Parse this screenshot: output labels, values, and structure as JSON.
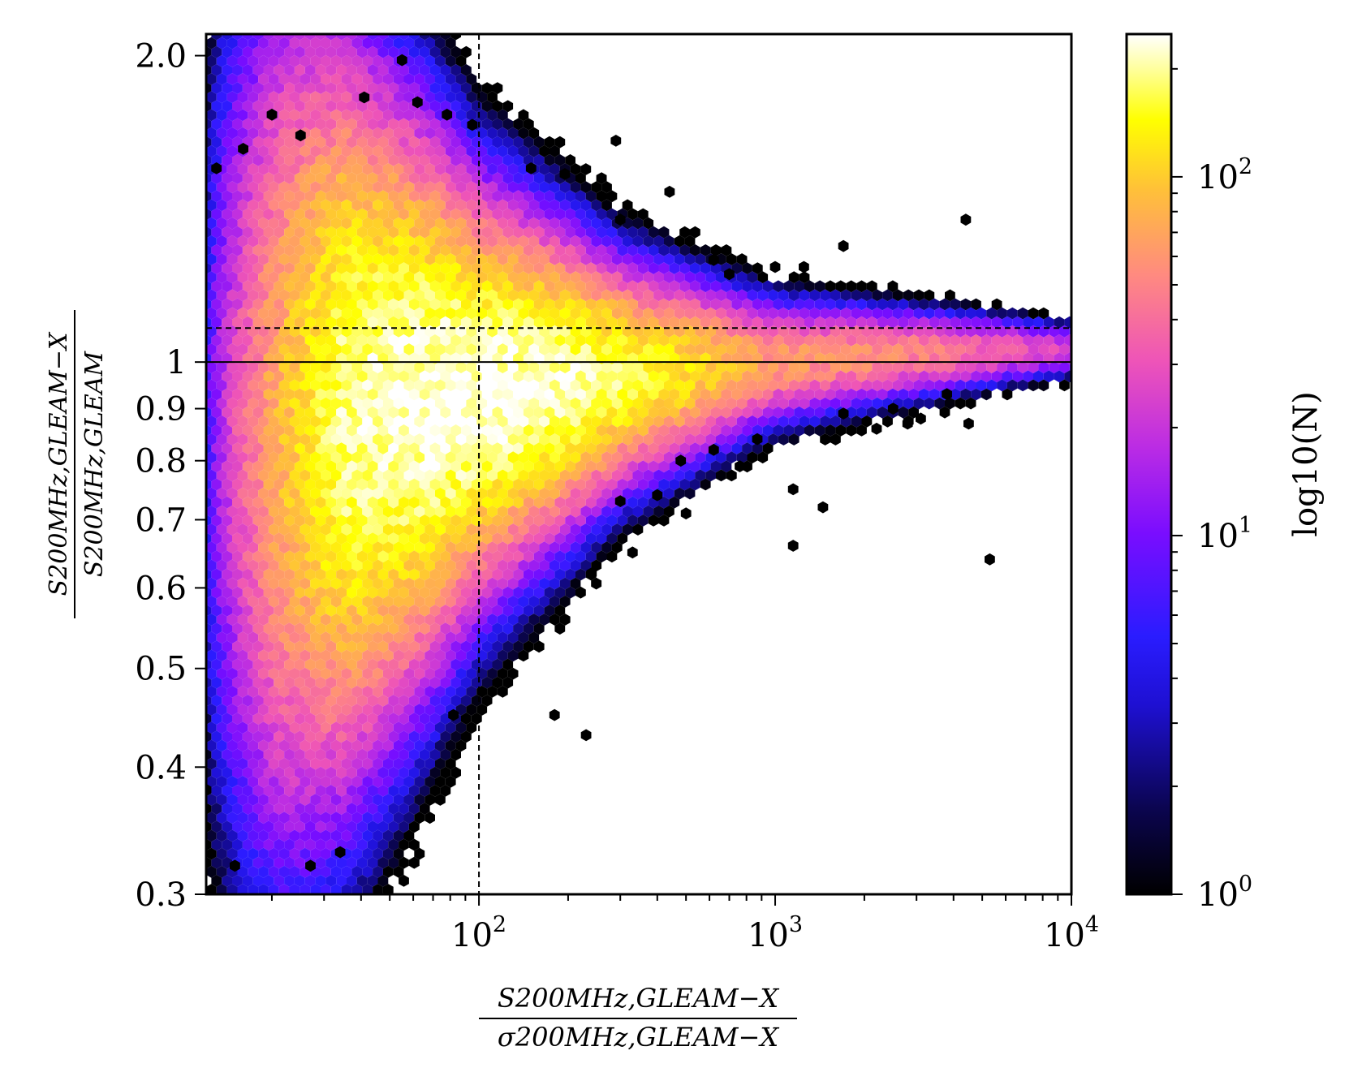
{
  "chart_data": {
    "type": "heatmap",
    "subtype": "hexbin",
    "colormap": "gnuplot2",
    "x_scale": "log",
    "y_scale": "log",
    "xlim": [
      12,
      10000
    ],
    "ylim": [
      0.3,
      2.1
    ],
    "xlabel": {
      "numerator": "S200MHz,GLEAM−X",
      "denominator": "σ200MHz,GLEAM−X"
    },
    "ylabel": {
      "numerator": "S200MHz,GLEAM−X",
      "denominator": "S200MHz,GLEAM"
    },
    "x_ticks": [
      {
        "value": 100,
        "base": "10",
        "exp": "2"
      },
      {
        "value": 1000,
        "base": "10",
        "exp": "3"
      },
      {
        "value": 10000,
        "base": "10",
        "exp": "4"
      }
    ],
    "y_ticks": [
      {
        "value": 2.0,
        "label": "2.0"
      },
      {
        "value": 1.0,
        "label": "1"
      },
      {
        "value": 0.9,
        "label": "0.9"
      },
      {
        "value": 0.8,
        "label": "0.8"
      },
      {
        "value": 0.7,
        "label": "0.7"
      },
      {
        "value": 0.6,
        "label": "0.6"
      },
      {
        "value": 0.5,
        "label": "0.5"
      },
      {
        "value": 0.4,
        "label": "0.4"
      },
      {
        "value": 0.3,
        "label": "0.3"
      }
    ],
    "colorbar": {
      "label": "log10(N)",
      "scale": "log",
      "range": [
        1,
        250
      ],
      "ticks": [
        {
          "value": 1,
          "base": "10",
          "exp": "0"
        },
        {
          "value": 10,
          "base": "10",
          "exp": "1"
        },
        {
          "value": 100,
          "base": "10",
          "exp": "2"
        }
      ]
    },
    "reference_lines": [
      {
        "orientation": "vertical",
        "x": 100,
        "style": "dashed"
      },
      {
        "orientation": "horizontal",
        "y": 1.0,
        "style": "solid"
      },
      {
        "orientation": "horizontal",
        "y": 1.08,
        "style": "dashed"
      }
    ],
    "density_model": {
      "description": "number of sources per hexagonal bin",
      "peak_counts": 250,
      "peak_location": {
        "x": 90,
        "y": 0.92
      },
      "ridge_center_y_at": [
        {
          "x": 20,
          "y": 0.87
        },
        {
          "x": 50,
          "y": 0.9
        },
        {
          "x": 100,
          "y": 0.93
        },
        {
          "x": 300,
          "y": 0.97
        },
        {
          "x": 1000,
          "y": 1.0
        },
        {
          "x": 3000,
          "y": 1.02
        },
        {
          "x": 10000,
          "y": 1.03
        }
      ],
      "ridge_scatter_log10_sigma_at": [
        {
          "x": 20,
          "y": 0.21
        },
        {
          "x": 50,
          "y": 0.14
        },
        {
          "x": 100,
          "y": 0.09
        },
        {
          "x": 300,
          "y": 0.05
        },
        {
          "x": 1000,
          "y": 0.028
        },
        {
          "x": 10000,
          "y": 0.012
        }
      ]
    },
    "outliers": [
      {
        "x": 27,
        "y": 0.32
      },
      {
        "x": 34,
        "y": 0.33
      },
      {
        "x": 15,
        "y": 0.32
      },
      {
        "x": 12,
        "y": 0.38
      },
      {
        "x": 230,
        "y": 0.43
      },
      {
        "x": 180,
        "y": 0.45
      },
      {
        "x": 82,
        "y": 0.45
      },
      {
        "x": 1450,
        "y": 0.72
      },
      {
        "x": 1150,
        "y": 0.66
      },
      {
        "x": 5300,
        "y": 0.64
      },
      {
        "x": 330,
        "y": 0.65
      },
      {
        "x": 240,
        "y": 0.62
      },
      {
        "x": 500,
        "y": 0.71
      },
      {
        "x": 4400,
        "y": 1.38
      },
      {
        "x": 290,
        "y": 1.65
      },
      {
        "x": 150,
        "y": 1.55
      },
      {
        "x": 195,
        "y": 1.53
      },
      {
        "x": 440,
        "y": 1.47
      },
      {
        "x": 300,
        "y": 1.38
      },
      {
        "x": 55,
        "y": 1.98
      },
      {
        "x": 4500,
        "y": 0.87
      },
      {
        "x": 1150,
        "y": 0.75
      },
      {
        "x": 760,
        "y": 0.79
      },
      {
        "x": 1700,
        "y": 1.3
      },
      {
        "x": 1000,
        "y": 1.24
      },
      {
        "x": 1250,
        "y": 1.24
      },
      {
        "x": 620,
        "y": 1.26
      },
      {
        "x": 3100,
        "y": 0.88
      },
      {
        "x": 3800,
        "y": 0.93
      },
      {
        "x": 2500,
        "y": 0.9
      },
      {
        "x": 2800,
        "y": 0.87
      },
      {
        "x": 2200,
        "y": 0.86
      },
      {
        "x": 1700,
        "y": 0.89
      },
      {
        "x": 700,
        "y": 1.22
      },
      {
        "x": 16,
        "y": 1.62
      },
      {
        "x": 13,
        "y": 1.55
      },
      {
        "x": 20,
        "y": 1.75
      },
      {
        "x": 25,
        "y": 1.67
      },
      {
        "x": 41,
        "y": 1.82
      },
      {
        "x": 62,
        "y": 1.8
      },
      {
        "x": 78,
        "y": 1.75
      },
      {
        "x": 95,
        "y": 1.71
      },
      {
        "x": 480,
        "y": 0.8
      },
      {
        "x": 620,
        "y": 0.82
      },
      {
        "x": 870,
        "y": 0.84
      },
      {
        "x": 400,
        "y": 0.74
      },
      {
        "x": 300,
        "y": 0.73
      }
    ]
  }
}
